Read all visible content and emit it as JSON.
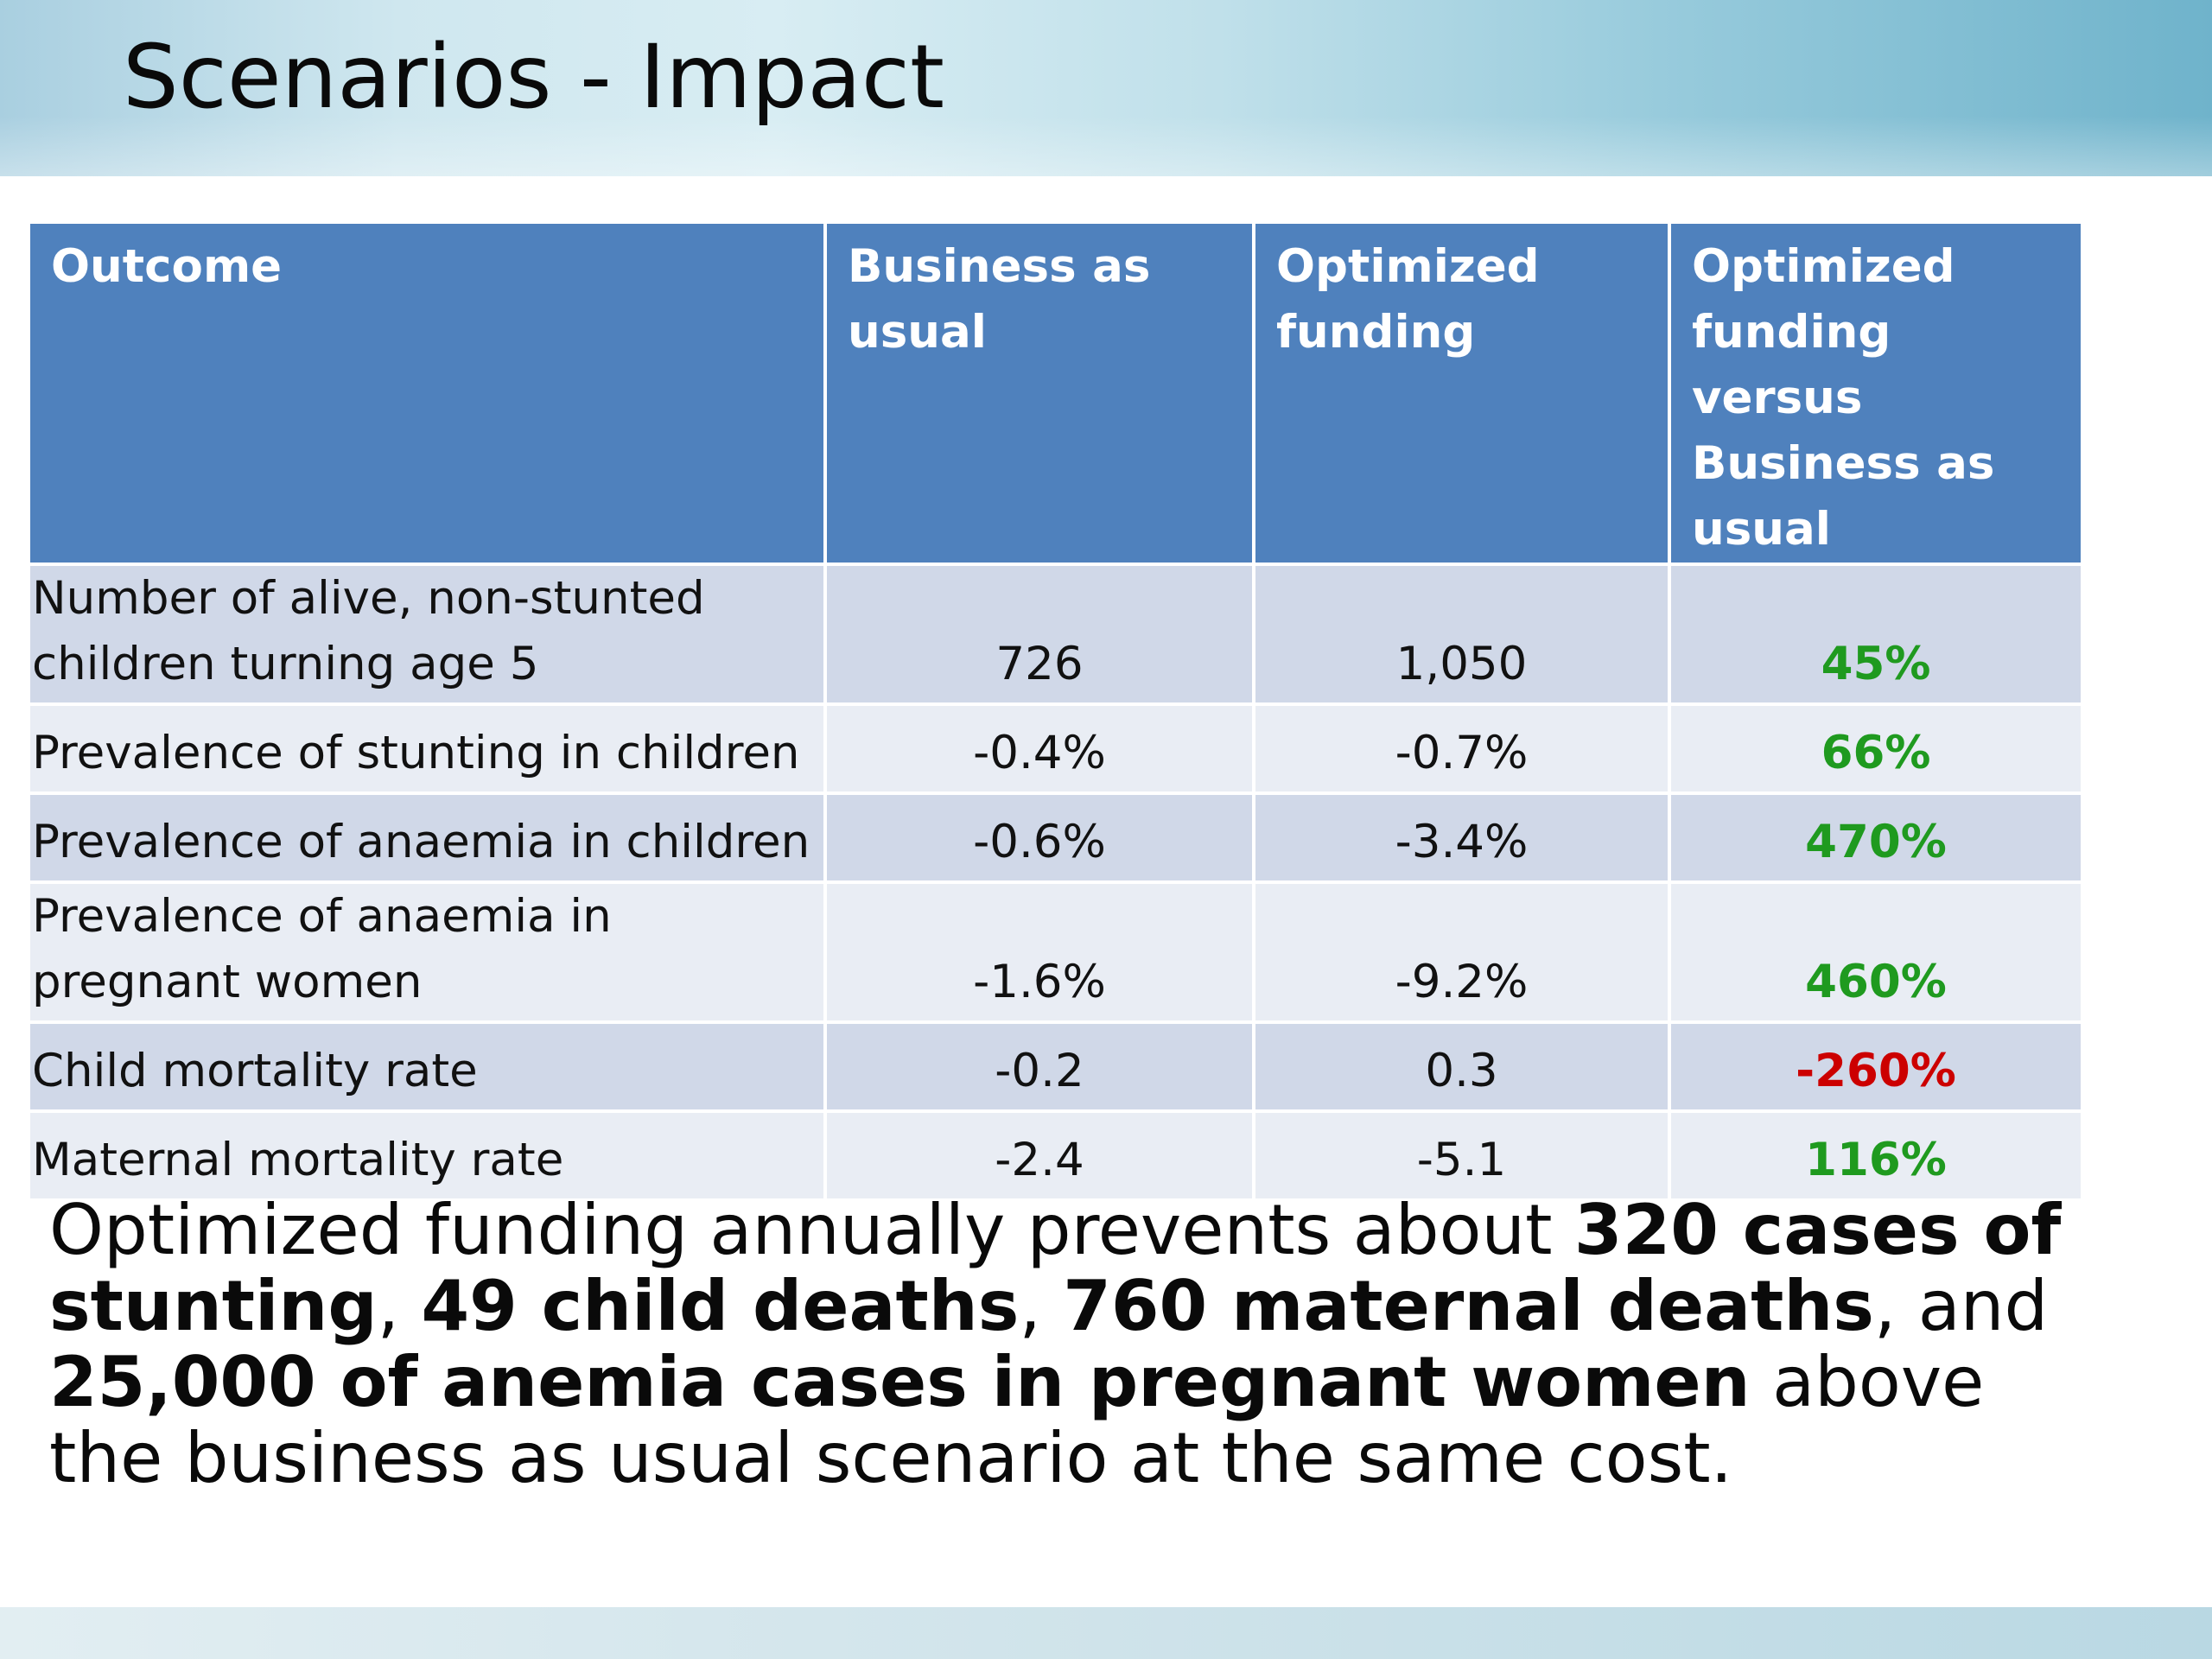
{
  "title": "Scenarios - Impact",
  "table": {
    "headers": [
      "Outcome",
      "Business as usual",
      "Optimized funding",
      "Optimized funding versus Business as usual"
    ],
    "rows": [
      {
        "outcome": "Number of alive, non-stunted children turning age 5",
        "business_as_usual": "726",
        "optimized": "1,050",
        "comparison": "45%",
        "comparison_color": "#1f9a1f"
      },
      {
        "outcome": "Prevalence of stunting in children",
        "business_as_usual": "-0.4%",
        "optimized": "-0.7%",
        "comparison": "66%",
        "comparison_color": "#1f9a1f"
      },
      {
        "outcome": "Prevalence of anaemia in children",
        "business_as_usual": "-0.6%",
        "optimized": "-3.4%",
        "comparison": "470%",
        "comparison_color": "#1f9a1f"
      },
      {
        "outcome": "Prevalence of anaemia in pregnant women",
        "business_as_usual": "-1.6%",
        "optimized": "-9.2%",
        "comparison": "460%",
        "comparison_color": "#1f9a1f"
      },
      {
        "outcome": "Child mortality rate",
        "business_as_usual": "-0.2",
        "optimized": "0.3",
        "comparison": "-260%",
        "comparison_color": "#cc0000"
      },
      {
        "outcome": "Maternal mortality rate",
        "business_as_usual": "-2.4",
        "optimized": "-5.1",
        "comparison": "116%",
        "comparison_color": "#1f9a1f"
      }
    ]
  },
  "summary": {
    "part1": "Optimized funding annually prevents about ",
    "bold1": "320 cases of stunting",
    "sep1": ", ",
    "bold2": "49 child deaths",
    "sep2": ", ",
    "bold3": "760 maternal deaths",
    "sep3": ", and ",
    "bold4": "25,000 of anemia cases in pregnant women",
    "part2": " above the business as usual scenario at the same cost."
  },
  "colors": {
    "header_bg": "#4f81bd",
    "row_dark": "#d0d8e8",
    "row_light": "#e9edf4",
    "positive": "#1f9a1f",
    "negative": "#cc0000"
  }
}
